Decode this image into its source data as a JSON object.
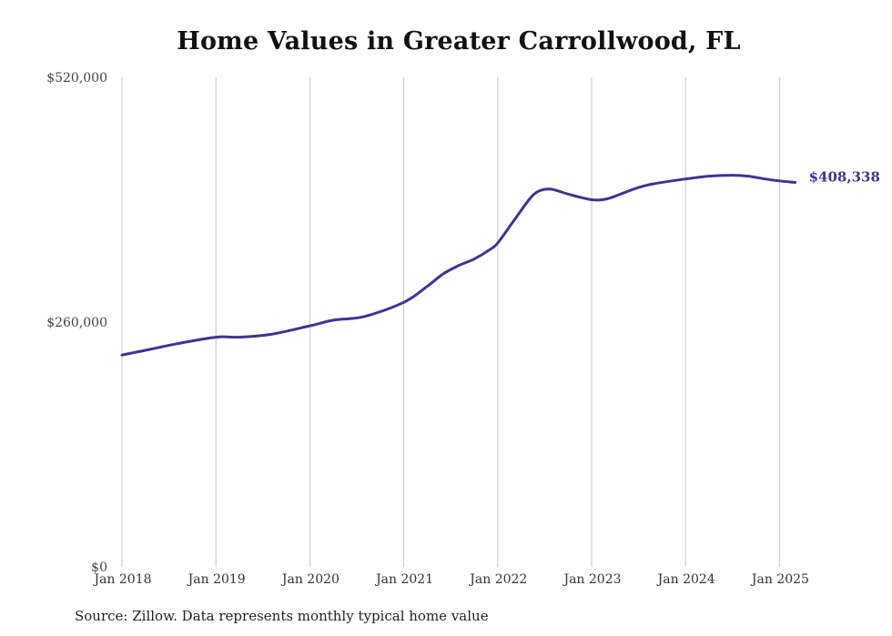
{
  "chart_data": {
    "type": "line",
    "title": "Home Values in Greater Carrollwood, FL",
    "xlabel": "",
    "ylabel": "",
    "ylim": [
      0,
      520000
    ],
    "y_ticks": [
      0,
      260000,
      520000
    ],
    "y_tick_labels": [
      "$0",
      "$260,000",
      "$520,000"
    ],
    "x_range": [
      "2018-01",
      "2025-03"
    ],
    "x_ticks": [
      "2018-01",
      "2019-01",
      "2020-01",
      "2021-01",
      "2022-01",
      "2023-01",
      "2024-01",
      "2025-01"
    ],
    "x_tick_labels": [
      "Jan 2018",
      "Jan 2019",
      "Jan 2020",
      "Jan 2021",
      "Jan 2022",
      "Jan 2023",
      "Jan 2024",
      "Jan 2025"
    ],
    "grid": "vertical",
    "end_label": "$408,338",
    "colors": {
      "line": "#3f3591",
      "grid": "#c8c8c8"
    },
    "series": [
      {
        "x": [
          "2018-01",
          "2018-04",
          "2018-08",
          "2019-01",
          "2019-04",
          "2019-08",
          "2020-01",
          "2020-04",
          "2020-08",
          "2021-01",
          "2021-04",
          "2021-06",
          "2021-08",
          "2021-10",
          "2021-12",
          "2022-01",
          "2022-03",
          "2022-05",
          "2022-06",
          "2022-07",
          "2022-08",
          "2022-10",
          "2023-01",
          "2023-03",
          "2023-05",
          "2023-07",
          "2023-09",
          "2024-01",
          "2024-04",
          "2024-07",
          "2024-09",
          "2024-12",
          "2025-03"
        ],
        "values": [
          225000,
          230000,
          237000,
          244000,
          244000,
          247000,
          256000,
          262000,
          266000,
          281000,
          298000,
          311000,
          320000,
          327000,
          337000,
          344000,
          367000,
          390000,
          398000,
          401000,
          401000,
          396000,
          390000,
          391000,
          397000,
          403000,
          407000,
          412000,
          415000,
          416000,
          415000,
          411000,
          408338
        ]
      }
    ]
  },
  "footer": {
    "source": "Source: Zillow. Data represents monthly typical home value"
  }
}
